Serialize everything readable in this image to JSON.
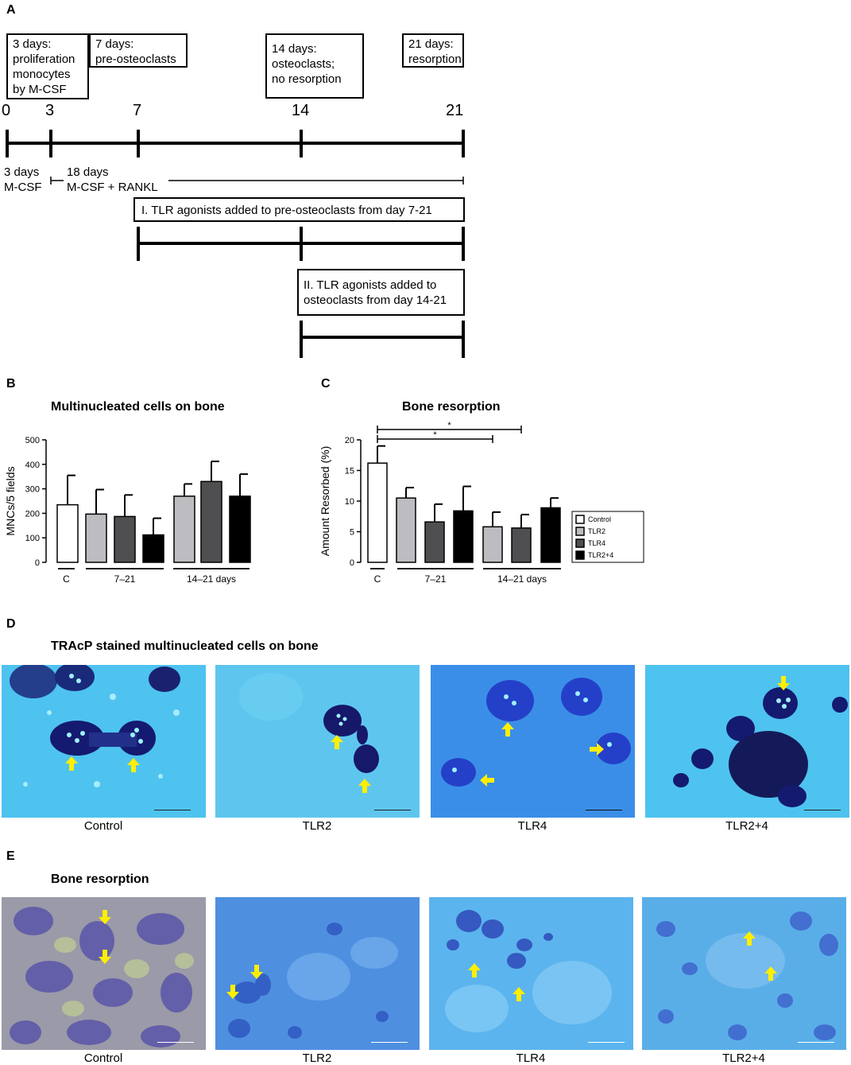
{
  "panel_a": {
    "letter": "A",
    "boxes": [
      "3 days:\nproliferation\nmonocytes\nby M-CSF",
      "7 days:\npre-osteoclasts",
      "14 days:\nosteoclasts;\nno resorption",
      "21 days:\nresorption"
    ],
    "ticks": [
      "0",
      "3",
      "7",
      "14",
      "21"
    ],
    "note_mcsf": "3 days\nM-CSF",
    "note_rankl": "18 days\nM-CSF + RANKL",
    "protocol1": "I. TLR agonists added to pre-osteoclasts from day 7-21",
    "protocol2": "II. TLR agonists added to\nosteoclasts from day 14-21"
  },
  "chart_data": [
    {
      "type": "bar",
      "panel": "B",
      "title": "Multinucleated cells on bone",
      "ylabel": "MNCs/5 fields",
      "ylim": [
        0,
        500
      ],
      "yticks": [
        "0",
        "100",
        "200",
        "300",
        "400",
        "500"
      ],
      "categories": [
        "Control",
        "TLR2",
        "TLR4",
        "TLR2+4",
        "TLR2",
        "TLR4",
        "TLR2+4"
      ],
      "values": [
        235,
        197,
        187,
        112,
        270,
        330,
        270
      ],
      "errors": [
        120,
        100,
        88,
        68,
        50,
        82,
        90
      ],
      "groups": [
        "C",
        "7–21",
        "14–21 days"
      ]
    },
    {
      "type": "bar",
      "panel": "C",
      "title": "Bone resorption",
      "ylabel": "Amount Resorbed (%)",
      "ylim": [
        0,
        20
      ],
      "yticks": [
        "0",
        "5",
        "10",
        "15",
        "20"
      ],
      "categories": [
        "Control",
        "TLR2",
        "TLR4",
        "TLR2+4",
        "TLR2",
        "TLR4",
        "TLR2+4"
      ],
      "values": [
        16.2,
        10.5,
        6.6,
        8.4,
        5.8,
        5.6,
        8.9
      ],
      "errors": [
        2.8,
        1.7,
        2.9,
        4.0,
        2.4,
        2.2,
        1.6
      ],
      "groups": [
        "C",
        "7–21",
        "14–21 days"
      ],
      "significance": [
        {
          "from": 0,
          "to": 4,
          "label": "*"
        },
        {
          "from": 0,
          "to": 5,
          "label": "*"
        }
      ],
      "legend": [
        "Control",
        "TLR2",
        "TLR4",
        "TLR2+4"
      ]
    }
  ],
  "series_colors": [
    "#ffffff",
    "#bdbdc1",
    "#4f4f52",
    "#000000"
  ],
  "panel_d": {
    "letter": "D",
    "title": "TRAcP stained multinucleated cells on bone",
    "captions": [
      "Control",
      "TLR2",
      "TLR4",
      "TLR2+4"
    ]
  },
  "panel_e": {
    "letter": "E",
    "title": "Bone resorption",
    "captions": [
      "Control",
      "TLR2",
      "TLR4",
      "TLR2+4"
    ]
  },
  "colors": {
    "arrow": "#ffee00",
    "stain_dark": "#1a1a6e",
    "bone_light": "#4fc3ee"
  }
}
